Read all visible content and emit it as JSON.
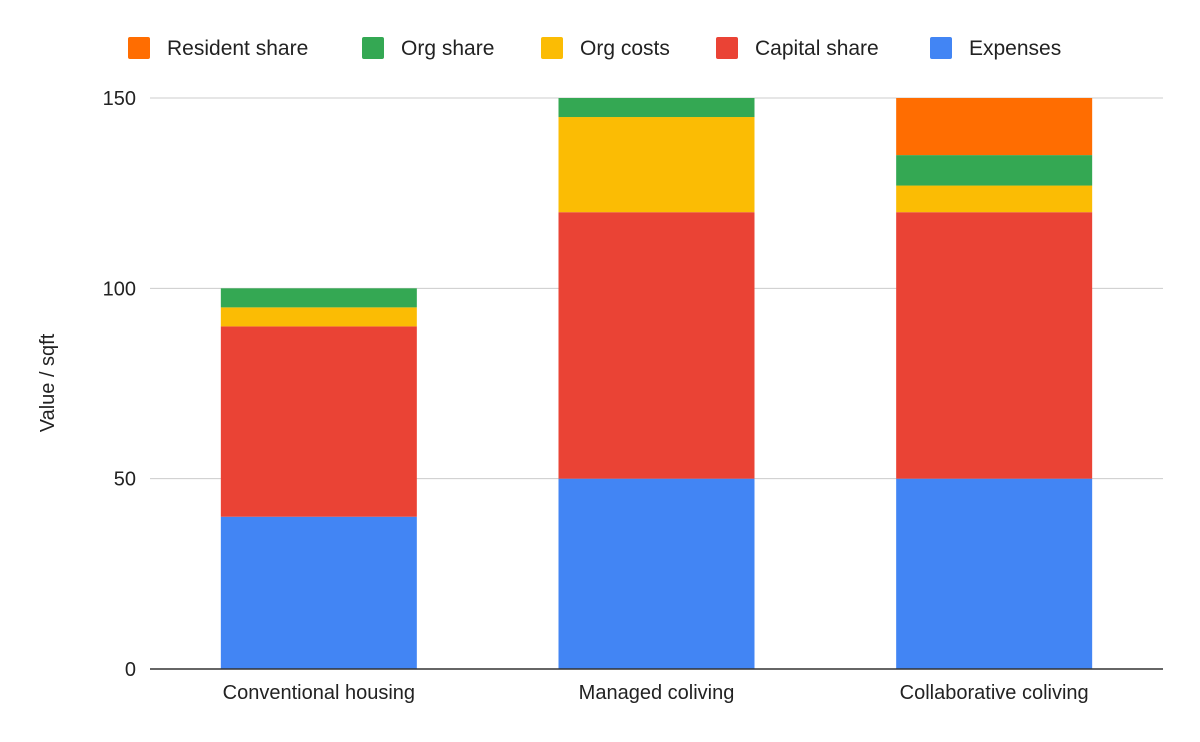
{
  "chart_data": {
    "type": "bar",
    "stacked": true,
    "title": "",
    "xlabel": "",
    "ylabel": "Value / sqft",
    "ylim": [
      0,
      150
    ],
    "yticks": [
      0,
      50,
      100,
      150
    ],
    "grid": true,
    "legend_position": "top",
    "categories": [
      "Conventional housing",
      "Managed coliving",
      "Collaborative coliving"
    ],
    "series": [
      {
        "name": "Expenses",
        "color": "#4285f4",
        "values": [
          40,
          50,
          50
        ]
      },
      {
        "name": "Capital share",
        "color": "#ea4335",
        "values": [
          50,
          70,
          70
        ]
      },
      {
        "name": "Org costs",
        "color": "#fbbc04",
        "values": [
          5,
          25,
          7
        ]
      },
      {
        "name": "Org share",
        "color": "#34a853",
        "values": [
          5,
          5,
          8
        ]
      },
      {
        "name": "Resident share",
        "color": "#ff6d01",
        "values": [
          0,
          0,
          15
        ]
      }
    ]
  }
}
